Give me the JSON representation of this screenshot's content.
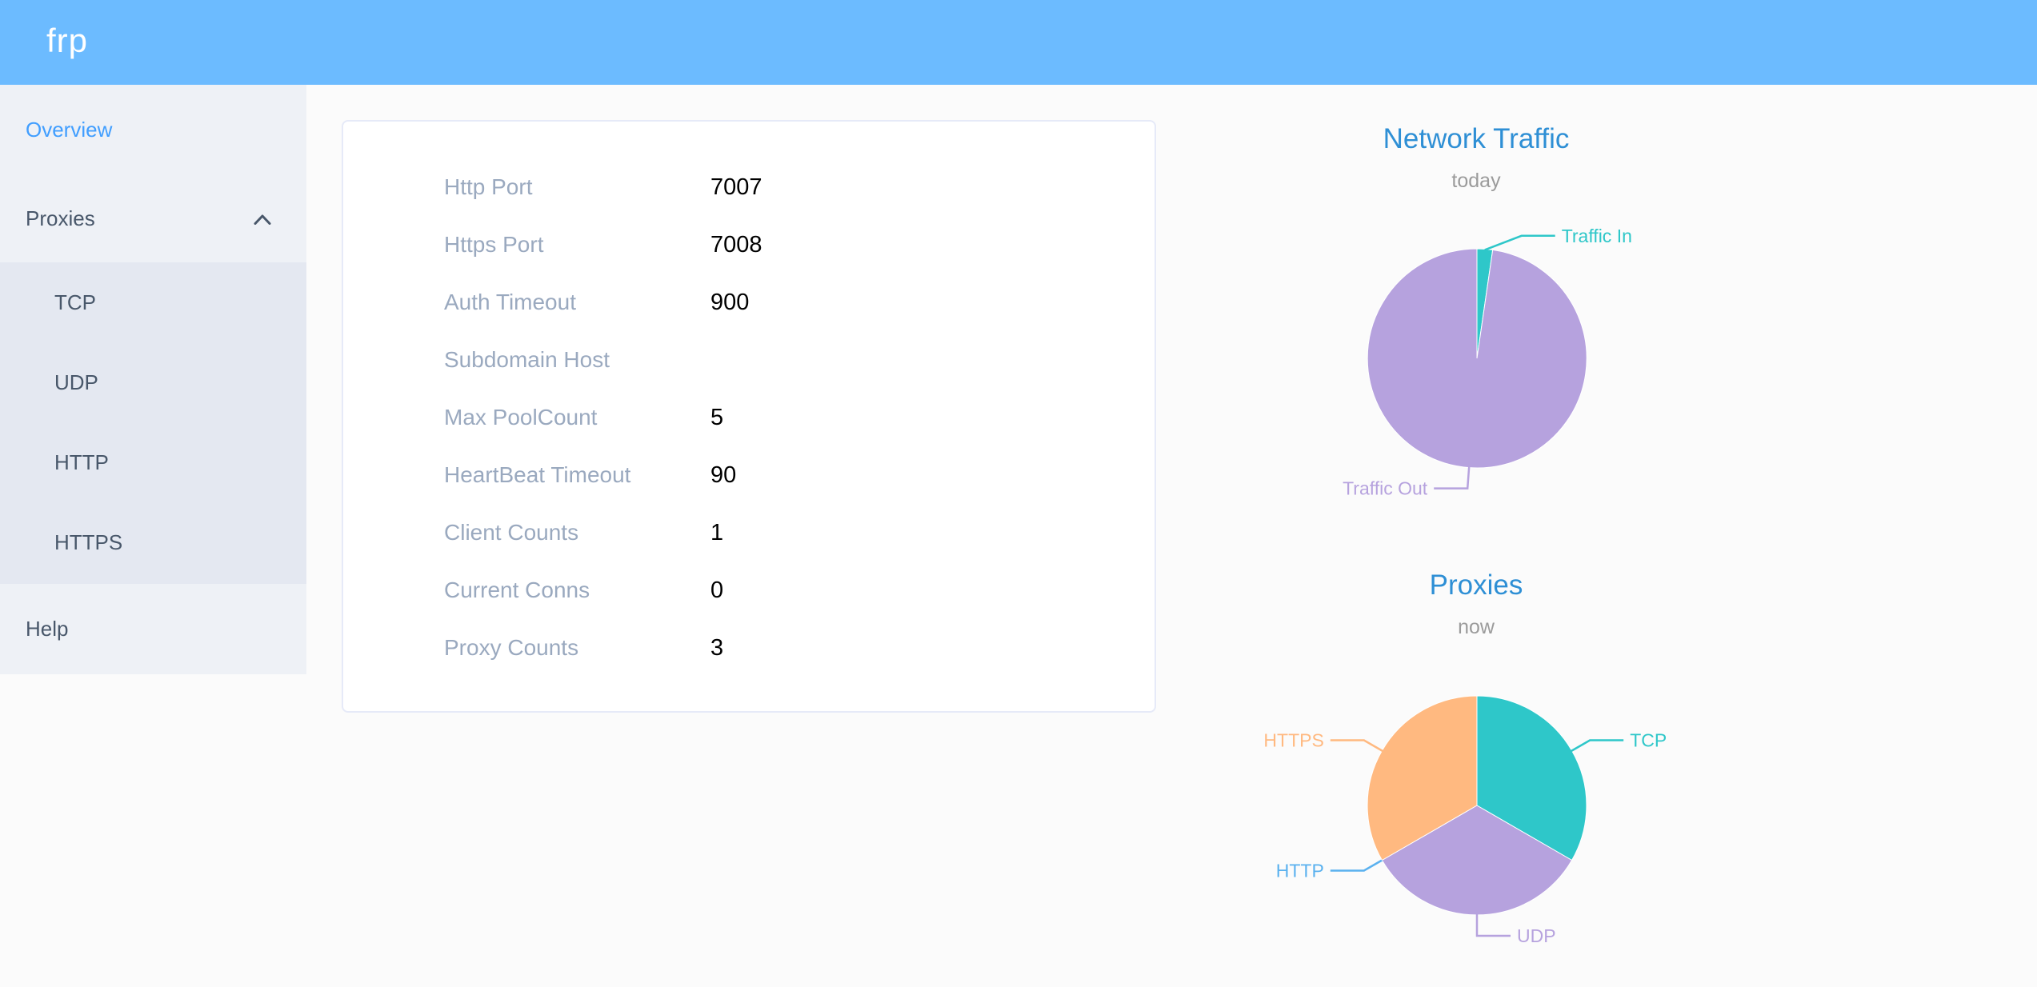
{
  "header": {
    "logo": "frp"
  },
  "sidebar": {
    "items": [
      {
        "id": "overview",
        "label": "Overview",
        "active": true
      },
      {
        "id": "proxies",
        "label": "Proxies",
        "expanded": true,
        "children": [
          {
            "id": "tcp",
            "label": "TCP"
          },
          {
            "id": "udp",
            "label": "UDP"
          },
          {
            "id": "http",
            "label": "HTTP"
          },
          {
            "id": "https",
            "label": "HTTPS"
          }
        ]
      },
      {
        "id": "help",
        "label": "Help"
      }
    ]
  },
  "overview": {
    "rows": [
      {
        "label": "Http Port",
        "value": "7007"
      },
      {
        "label": "Https Port",
        "value": "7008"
      },
      {
        "label": "Auth Timeout",
        "value": "900"
      },
      {
        "label": "Subdomain Host",
        "value": ""
      },
      {
        "label": "Max PoolCount",
        "value": "5"
      },
      {
        "label": "HeartBeat Timeout",
        "value": "90"
      },
      {
        "label": "Client Counts",
        "value": "1"
      },
      {
        "label": "Current Conns",
        "value": "0"
      },
      {
        "label": "Proxy Counts",
        "value": "3"
      }
    ]
  },
  "palette": {
    "header_bg": "#6cbbff",
    "sidebar_bg": "#eef1f6",
    "submenu_bg": "#e4e8f1",
    "active_link": "#409eff",
    "chart_title": "#2e8fd5",
    "teal": "#2ec7c9",
    "purple": "#b6a2de",
    "blue": "#5ab1ef",
    "orange": "#ffb980"
  },
  "chart_data": [
    {
      "type": "pie",
      "title": "Network Traffic",
      "subtitle": "today",
      "legend_position": "none",
      "start_angle_deg": 0,
      "slices": [
        {
          "name": "Traffic In",
          "value": 2.3,
          "color": "#2ec7c9",
          "label_angle": 20
        },
        {
          "name": "Traffic Out",
          "value": 97.7,
          "color": "#b6a2de"
        }
      ],
      "note": "values are percentages estimated from arc angles"
    },
    {
      "type": "pie",
      "title": "Proxies",
      "subtitle": "now",
      "legend_position": "none",
      "start_angle_deg": 0,
      "slices": [
        {
          "name": "TCP",
          "value": 1,
          "color": "#2ec7c9"
        },
        {
          "name": "UDP",
          "value": 1,
          "color": "#b6a2de"
        },
        {
          "name": "HTTP",
          "value": 0,
          "color": "#5ab1ef"
        },
        {
          "name": "HTTPS",
          "value": 1,
          "color": "#ffb980"
        }
      ]
    }
  ]
}
